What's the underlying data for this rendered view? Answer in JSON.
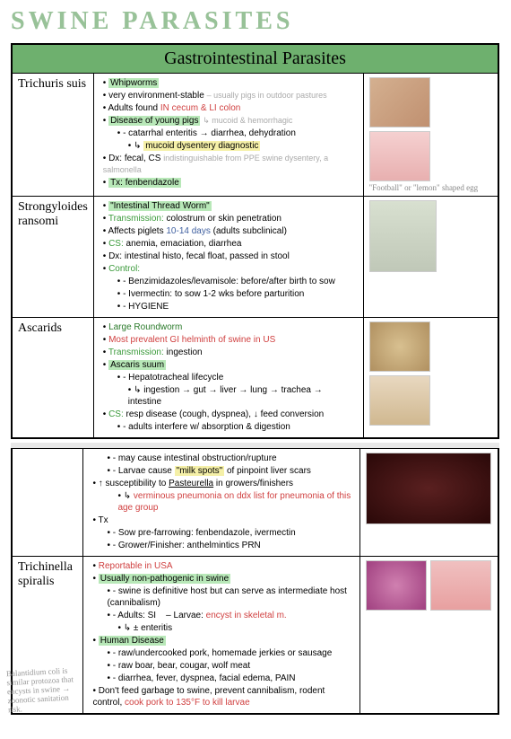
{
  "title": "SWINE PARASITES",
  "header": "Gastrointestinal Parasites",
  "rows": [
    {
      "label": "Trichuris suis",
      "img_caption": "\"Football\" or \"lemon\" shaped egg",
      "thumbs": [
        {
          "bg": "linear-gradient(135deg,#d4b090,#c09070)"
        },
        {
          "bg": "linear-gradient(#f5d0d0,#e8b0b0)"
        }
      ],
      "bullets": [
        {
          "html": "<span class='hl-green'>Whipworms</span>"
        },
        {
          "html": "very environment-stable <span class='grey'>– usually pigs in outdoor pastures</span>"
        },
        {
          "html": "Adults found <span class='red'>IN cecum & LI colon</span>"
        },
        {
          "html": "<span class='hl-green'>Disease of young pigs</span> <span class='grey'>↳ mucoid & hemorrhagic</span>"
        },
        {
          "sub": true,
          "html": "catarrhal enteritis → diarrhea, dehydration"
        },
        {
          "sub2": true,
          "html": "<span class='hl-yellow'>mucoid dysentery diagnostic</span>"
        },
        {
          "html": "Dx: fecal, CS <span class='grey'>indistinguishable from PPE swine dysentery, a salmonella</span>"
        },
        {
          "html": "<span class='hl-green'>Tx: fenbendazole</span>"
        }
      ]
    },
    {
      "label": "Strongyloides ransomi",
      "thumbs": [
        {
          "bg": "linear-gradient(#d8e0d0,#c0c8b8)",
          "wide": false,
          "h": 80,
          "w": 75
        }
      ],
      "bullets": [
        {
          "html": "<span class='hl-green'>\"Intestinal Thread Worm\"</span>"
        },
        {
          "html": "<span class='green'>Transmission:</span> colostrum or skin penetration"
        },
        {
          "html": "Affects piglets <span class='blue'>10-14 days</span> (adults subclinical)"
        },
        {
          "html": "<span class='green'>CS:</span> anemia, emaciation, diarrhea"
        },
        {
          "html": "Dx: intestinal histo, fecal float, passed in stool"
        },
        {
          "html": "<span class='green'>Control:</span>"
        },
        {
          "sub": true,
          "html": "Benzimidazoles/levamisole: before/after birth to sow"
        },
        {
          "sub": true,
          "html": "Ivermectin: to sow 1-2 wks before parturition"
        },
        {
          "sub": true,
          "html": "HYGIENE"
        }
      ]
    },
    {
      "label": "Ascarids",
      "thumbs": [
        {
          "bg": "radial-gradient(circle,#d8c090,#b09060)"
        },
        {
          "bg": "linear-gradient(#e8d8c0,#d0b890)"
        }
      ],
      "bullets": [
        {
          "html": "<span class='darkgreen'>Large Roundworm</span>"
        },
        {
          "html": "<span class='red'>Most prevalent GI helminth of swine in US</span>"
        },
        {
          "html": "<span class='green'>Transmission:</span> ingestion"
        },
        {
          "html": "<span class='hl-green'>Ascaris suum</span>"
        },
        {
          "sub": true,
          "html": "Hepatotracheal lifecycle"
        },
        {
          "sub2": true,
          "html": "ingestion → gut → liver → lung → trachea → intestine"
        },
        {
          "html": "<span class='green'>CS:</span> resp disease (cough, dyspnea), ↓ feed conversion"
        },
        {
          "sub": true,
          "html": "adults interfere w/ absorption & digestion"
        }
      ]
    }
  ],
  "rows2": [
    {
      "label": "",
      "thumbs": [
        {
          "bg": "radial-gradient(ellipse,#5a2020,#2a0808)",
          "wide": true
        }
      ],
      "bullets": [
        {
          "sub": true,
          "html": "may cause intestinal obstruction/rupture"
        },
        {
          "sub": true,
          "html": "Larvae cause <span class='hl-yellow'>\"milk spots\"</span> of pinpoint liver scars"
        },
        {
          "html": "↑ susceptibility to <u>Pasteurella</u> in growers/finishers"
        },
        {
          "sub2": true,
          "html": "<span class='red'>verminous pneumonia on ddx list for pneumonia of this age group</span>"
        },
        {
          "html": "Tx"
        },
        {
          "sub": true,
          "html": "Sow pre-farrowing: fenbendazole, ivermectin"
        },
        {
          "sub": true,
          "html": "Grower/Finisher: anthelmintics PRN"
        }
      ]
    },
    {
      "label": "Trichinella spiralis",
      "thumbs": [
        {
          "bg": "radial-gradient(circle,#d080b0,#a04080)"
        },
        {
          "bg": "linear-gradient(#f0c0c0,#e8a0a0)"
        }
      ],
      "bullets": [
        {
          "html": "<span class='red'>Reportable in USA</span>"
        },
        {
          "html": "<span class='hl-green'>Usually non-pathogenic in swine</span>"
        },
        {
          "sub": true,
          "html": "swine is definitive host but can serve as intermediate host (cannibalism)"
        },
        {
          "sub": true,
          "html": "Adults: SI &nbsp;&nbsp; – Larvae: <span class='red'>encyst in skeletal m.</span>"
        },
        {
          "sub2": true,
          "html": "± enteritis"
        },
        {
          "html": "<span class='hl-green'>Human Disease</span>"
        },
        {
          "sub": true,
          "html": "raw/undercooked pork, homemade jerkies or sausage"
        },
        {
          "sub": true,
          "html": "raw boar, bear, cougar, wolf meat"
        },
        {
          "sub": true,
          "html": "diarrhea, fever, dyspnea, facial edema, PAIN"
        },
        {
          "html": "Don't feed garbage to swine, prevent cannibalism, rodent control, <span class='red'>cook pork to 135°F to kill larvae</span>"
        }
      ]
    }
  ],
  "margin_note": "Balantidium coli is similar protozoa that encysts in swine → zoonotic sanitation risk.",
  "colors": {
    "header_bg": "#6eb06e",
    "hl_green": "#b8e8b8",
    "hl_yellow": "#f5f0a8",
    "red": "#d04040",
    "green": "#3a9a3a"
  }
}
